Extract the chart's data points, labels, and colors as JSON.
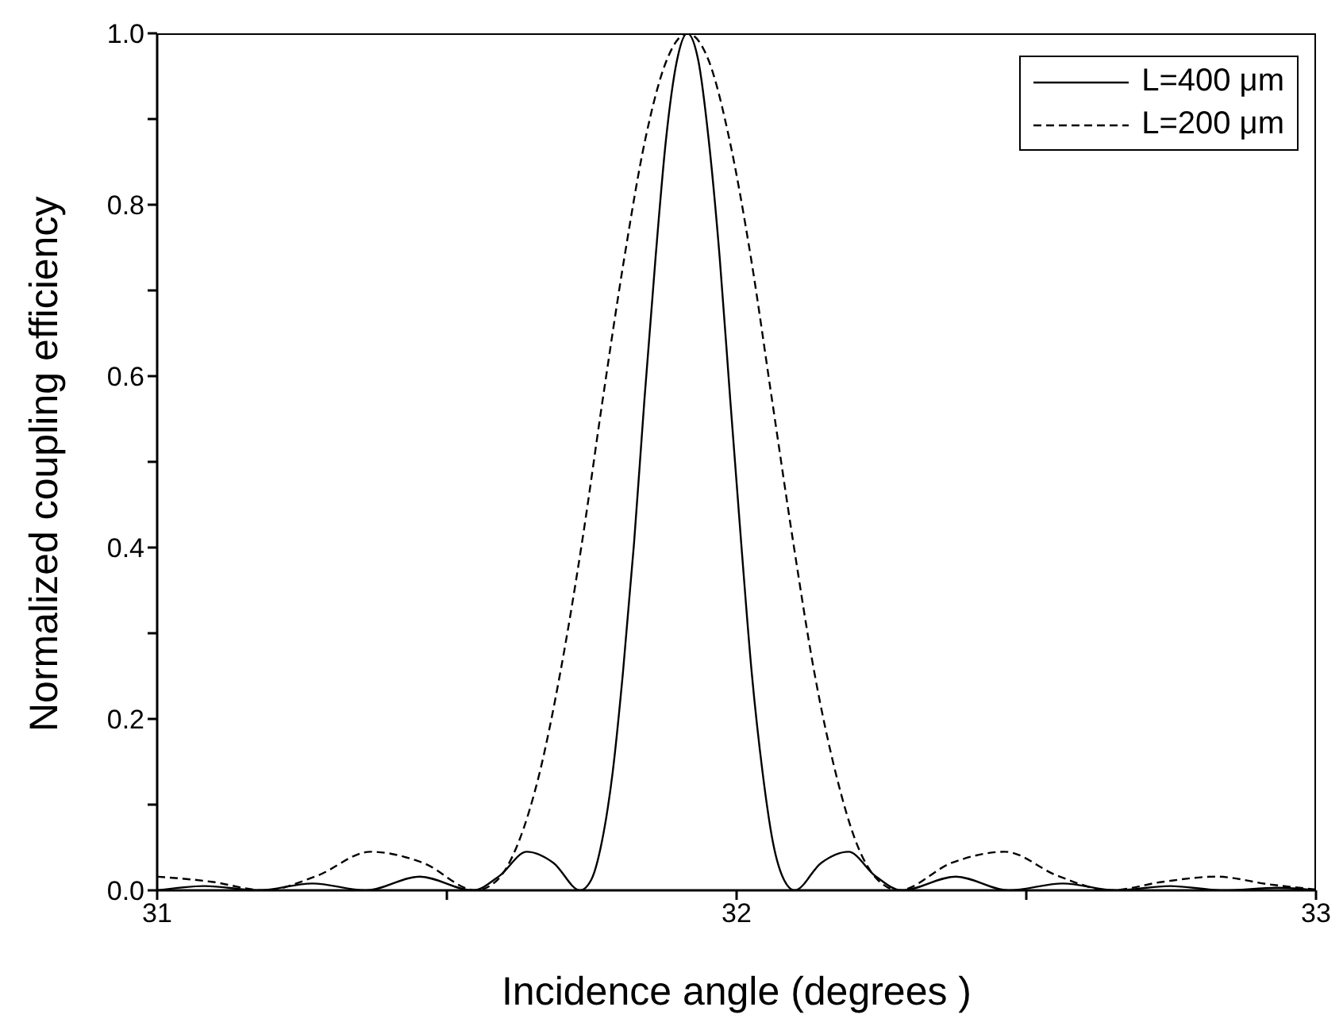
{
  "chart_data": {
    "type": "line",
    "xlabel": "Incidence angle (degrees )",
    "ylabel": "Normalized coupling efficiency",
    "xlim": [
      31,
      33
    ],
    "ylim": [
      0,
      1
    ],
    "xticks": [
      31,
      {
        "value": 31.5,
        "label": null
      },
      32,
      {
        "value": 32.5,
        "label": null
      },
      33
    ],
    "yticks": [
      {
        "value": 0,
        "label": "0.0"
      },
      {
        "value": 0.1,
        "label": null
      },
      0.2,
      {
        "value": 0.3,
        "label": null
      },
      0.4,
      {
        "value": 0.5,
        "label": null
      },
      0.6,
      {
        "value": 0.7,
        "label": null
      },
      0.8,
      {
        "value": 0.9,
        "label": null
      },
      {
        "value": 1,
        "label": "1.0"
      }
    ],
    "legend": "top right",
    "marker": "none",
    "series": [
      {
        "name": "L=400 μm",
        "color": "#000000",
        "line_style": "solid",
        "x": [
          31.0,
          31.083,
          31.175,
          31.268,
          31.36,
          31.453,
          31.545,
          31.591,
          31.638,
          31.684,
          31.73,
          31.749,
          31.767,
          31.786,
          31.804,
          31.823,
          31.841,
          31.86,
          31.878,
          31.897,
          31.915,
          31.934,
          31.952,
          31.971,
          31.989,
          32.008,
          32.026,
          32.045,
          32.063,
          32.082,
          32.1,
          32.146,
          32.193,
          32.239,
          32.285,
          32.378,
          32.47,
          32.563,
          32.655,
          32.748,
          32.84,
          32.933,
          33.0
        ],
        "values": [
          0,
          0.005,
          0,
          0.008,
          0,
          0.016,
          0,
          0.017,
          0.045,
          0.032,
          0,
          0.012,
          0.055,
          0.137,
          0.255,
          0.405,
          0.573,
          0.737,
          0.875,
          0.968,
          1,
          0.968,
          0.875,
          0.737,
          0.573,
          0.405,
          0.255,
          0.137,
          0.055,
          0.012,
          0,
          0.032,
          0.045,
          0.017,
          0,
          0.016,
          0,
          0.008,
          0,
          0.005,
          0,
          0.003,
          0
        ]
      },
      {
        "name": "L=200 μm",
        "color": "#000000",
        "line_style": "dashed",
        "x": [
          31.0,
          31.094,
          31.185,
          31.276,
          31.368,
          31.459,
          31.55,
          31.587,
          31.623,
          31.66,
          31.696,
          31.733,
          31.769,
          31.806,
          31.842,
          31.879,
          31.915,
          31.952,
          31.988,
          32.025,
          32.061,
          32.098,
          32.134,
          32.171,
          32.207,
          32.244,
          32.28,
          32.371,
          32.463,
          32.554,
          32.645,
          32.736,
          32.828,
          32.919,
          33.0
        ],
        "values": [
          0.016,
          0.01,
          0,
          0.017,
          0.045,
          0.032,
          0,
          0.012,
          0.055,
          0.137,
          0.255,
          0.405,
          0.573,
          0.737,
          0.875,
          0.968,
          1,
          0.968,
          0.875,
          0.737,
          0.573,
          0.405,
          0.255,
          0.137,
          0.055,
          0.012,
          0,
          0.032,
          0.045,
          0.017,
          0,
          0.01,
          0.016,
          0.007,
          0.001
        ]
      }
    ]
  }
}
